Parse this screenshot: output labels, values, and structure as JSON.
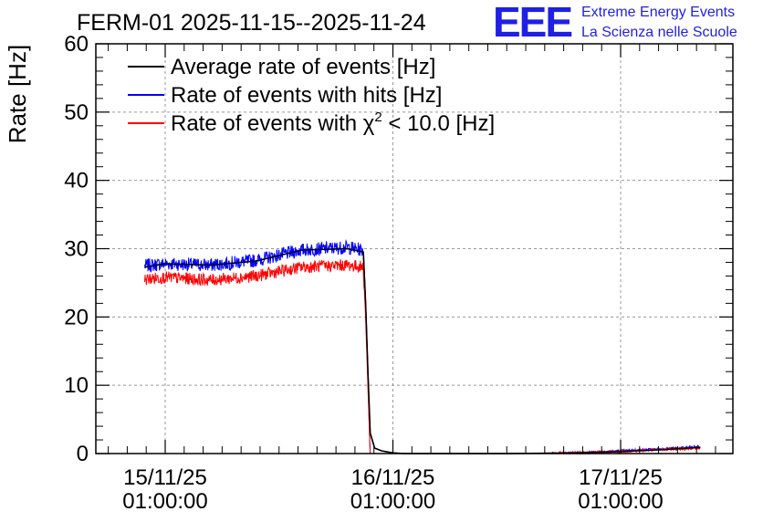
{
  "chart_data": {
    "type": "line",
    "title": "FERM-01 2025-11-15--2025-11-24",
    "ylabel": "Rate [Hz]",
    "xlabel": "",
    "ylim": [
      0,
      60
    ],
    "yticks": [
      0,
      10,
      20,
      30,
      40,
      50,
      60
    ],
    "xticks": [
      {
        "day": 0,
        "label1": "15/11/25",
        "label2": "01:00:00"
      },
      {
        "day": 1,
        "label1": "16/11/25",
        "label2": "01:00:00"
      },
      {
        "day": 2,
        "label1": "17/11/25",
        "label2": "01:00:00"
      }
    ],
    "xlim_days": [
      -0.25,
      2.5
    ],
    "grid": true,
    "legend_position": "top-left",
    "legend": [
      {
        "text": "Average rate of events [Hz]",
        "color": "#000000"
      },
      {
        "text": "Rate of events with hits [Hz]",
        "color": "#0000ff"
      },
      {
        "pre": "Rate of events with ",
        "chi": "χ",
        "sup": "2",
        "post": " < 10.0 [Hz]",
        "color": "#ff0000"
      }
    ],
    "series": [
      {
        "name": "Average rate of events [Hz]",
        "color": "#000000",
        "x": [
          -0.09,
          0.0,
          0.2,
          0.4,
          0.6,
          0.8,
          0.87,
          0.88,
          0.89,
          0.9,
          0.92,
          0.95,
          1.0,
          1.05,
          1.5,
          1.8,
          2.0,
          2.2,
          2.35
        ],
        "y": [
          27.3,
          27.8,
          27.6,
          28.2,
          29.8,
          30.0,
          29.5,
          22.0,
          12.0,
          3.0,
          0.8,
          0.4,
          0.1,
          0.0,
          0.0,
          0.1,
          0.3,
          0.6,
          0.9
        ]
      },
      {
        "name": "Rate of events with hits [Hz]",
        "color": "#0000ff",
        "noise": 1.0,
        "x": [
          -0.09,
          0.0,
          0.2,
          0.4,
          0.6,
          0.8,
          0.87,
          0.88,
          0.9,
          1.0,
          1.5,
          1.8,
          2.0,
          2.2,
          2.35
        ],
        "y": [
          27.5,
          27.8,
          27.6,
          28.3,
          29.8,
          30.2,
          29.8,
          22.0,
          0.0,
          0.0,
          0.0,
          0.1,
          0.4,
          0.7,
          1.0
        ]
      },
      {
        "name": "Rate of events with χ2 < 10.0 [Hz]",
        "color": "#ff0000",
        "noise": 0.9,
        "x": [
          -0.09,
          0.0,
          0.2,
          0.4,
          0.6,
          0.8,
          0.87,
          0.88,
          0.9,
          1.0,
          1.5,
          1.8,
          2.0,
          2.2,
          2.35
        ],
        "y": [
          25.5,
          25.8,
          25.4,
          26.0,
          27.3,
          27.6,
          27.3,
          20.0,
          0.0,
          0.0,
          0.0,
          0.1,
          0.3,
          0.6,
          0.8
        ]
      }
    ]
  },
  "logo": {
    "mark": "EEE",
    "line1": "Extreme Energy Events",
    "line2": "La Scienza nelle Scuole",
    "color": "#1f1fe6"
  }
}
